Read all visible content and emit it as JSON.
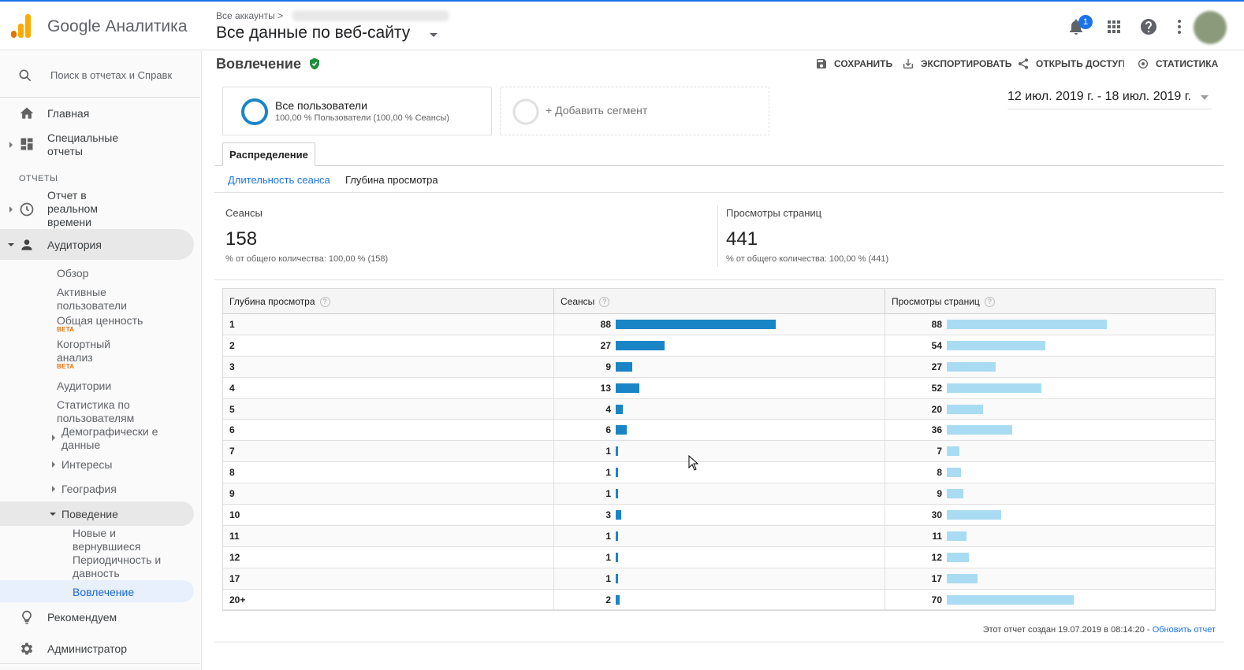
{
  "topbar": {
    "app_name": "Google Аналитика",
    "account_crumb": "Все аккаунты >",
    "view_title": "Все данные по веб-сайту",
    "notifications_count": "1",
    "icons": [
      "notifications-icon",
      "apps-grid-icon",
      "help-icon",
      "more-vert-icon",
      "avatar"
    ]
  },
  "sidebar": {
    "search_placeholder": "Поиск в отчетах и Справк",
    "home": "Главная",
    "custom_reports": "Специальные отчеты",
    "reports_section": "ОТЧЕТЫ",
    "realtime": "Отчет в реальном времени",
    "audience": "Аудитория",
    "audience_items": {
      "overview": "Обзор",
      "active_users": "Активные пользователи",
      "lifetime_value": "Общая ценность",
      "cohort": "Когортный анализ",
      "audiences": "Аудитории",
      "user_explorer": "Статистика по пользователям",
      "demographics": "Демографически е данные",
      "interests": "Интересы",
      "geo": "География",
      "behavior": "Поведение",
      "new_vs_returning": "Новые и вернувшиеся",
      "frequency": "Периодичность и давность",
      "engagement": "Вовлечение"
    },
    "beta": "BETA",
    "recommended": "Рекомендуем",
    "admin": "Администратор"
  },
  "main": {
    "title": "Вовлечение",
    "actions": {
      "save": "СОХРАНИТЬ",
      "export": "ЭКСПОРТИРОВАТЬ",
      "share": "ОТКРЫТЬ ДОСТУП",
      "insights": "СТАТИСТИКА"
    },
    "segment": {
      "name": "Все пользователи",
      "desc": "100,00 % Пользователи (100,00 % Сеансы)",
      "add": "+ Добавить сегмент"
    },
    "date_range": "12 июл. 2019 г. - 18 июл. 2019 г.",
    "tab": "Распределение",
    "subtabs": {
      "duration": "Длительность сеанса",
      "depth": "Глубина просмотра"
    },
    "summary": {
      "sessions_label": "Сеансы",
      "sessions_value": "158",
      "sessions_sub": "% от общего количества: 100,00 % (158)",
      "pageviews_label": "Просмотры страниц",
      "pageviews_value": "441",
      "pageviews_sub": "% от общего количества: 100,00 % (441)"
    },
    "table": {
      "headers": [
        "Глубина просмотра",
        "Сеансы",
        "Просмотры страниц"
      ],
      "rows": [
        {
          "depth": "1",
          "sessions": "88",
          "pageviews": "88"
        },
        {
          "depth": "2",
          "sessions": "27",
          "pageviews": "54"
        },
        {
          "depth": "3",
          "sessions": "9",
          "pageviews": "27"
        },
        {
          "depth": "4",
          "sessions": "13",
          "pageviews": "52"
        },
        {
          "depth": "5",
          "sessions": "4",
          "pageviews": "20"
        },
        {
          "depth": "6",
          "sessions": "6",
          "pageviews": "36"
        },
        {
          "depth": "7",
          "sessions": "1",
          "pageviews": "7"
        },
        {
          "depth": "8",
          "sessions": "1",
          "pageviews": "8"
        },
        {
          "depth": "9",
          "sessions": "1",
          "pageviews": "9"
        },
        {
          "depth": "10",
          "sessions": "3",
          "pageviews": "30"
        },
        {
          "depth": "11",
          "sessions": "1",
          "pageviews": "11"
        },
        {
          "depth": "12",
          "sessions": "1",
          "pageviews": "12"
        },
        {
          "depth": "17",
          "sessions": "1",
          "pageviews": "17"
        },
        {
          "depth": "20+",
          "sessions": "2",
          "pageviews": "70"
        }
      ]
    },
    "report_note": "Этот отчет создан 19.07.2019 в 08:14:20 - ",
    "refresh_link": "Обновить отчет"
  },
  "colors": {
    "sessions_bar": "#1a85c6",
    "pageviews_bar": "#a9dcf2",
    "accent": "#1a73e8",
    "logo_orange": "#f9ab00",
    "logo_dark_orange": "#e37400",
    "verified_green": "#1e8e3e"
  }
}
